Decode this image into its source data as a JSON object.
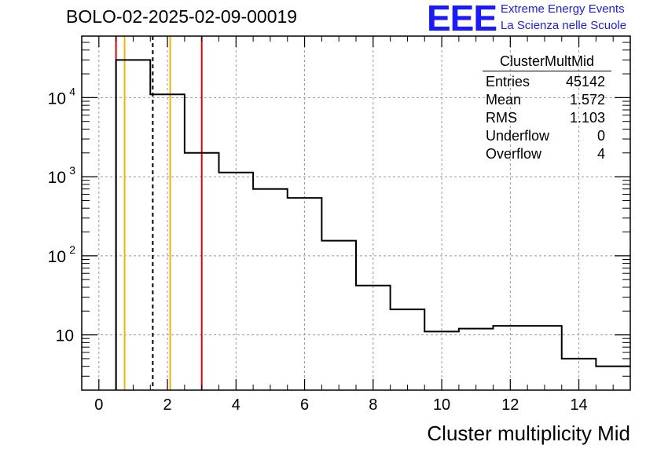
{
  "title": "BOLO-02-2025-02-09-00019",
  "logo": {
    "text": "EEE",
    "line1": "Extreme Energy Events",
    "line2": "La Scienza nelle Scuole",
    "color": "#1a1aff"
  },
  "stats_box": {
    "title": "ClusterMultMid",
    "rows": [
      {
        "label": "Entries",
        "value": "45142"
      },
      {
        "label": "Mean",
        "value": "1.572"
      },
      {
        "label": "RMS",
        "value": "1.103"
      },
      {
        "label": "Underflow",
        "value": "0"
      },
      {
        "label": "Overflow",
        "value": "4"
      }
    ]
  },
  "chart_data": {
    "type": "histogram",
    "xlabel": "Cluster multiplicity Mid",
    "ylabel": "",
    "log_y": true,
    "grid": true,
    "xlim": [
      -0.5,
      15.5
    ],
    "ylim": [
      2,
      60000
    ],
    "x_ticks": [
      "0",
      "2",
      "4",
      "6",
      "8",
      "10",
      "12",
      "14"
    ],
    "y_ticks": [
      {
        "value": 10,
        "label": "10",
        "exp": ""
      },
      {
        "value": 100,
        "label": "10",
        "exp": "2"
      },
      {
        "value": 1000,
        "label": "10",
        "exp": "3"
      },
      {
        "value": 10000,
        "label": "10",
        "exp": "4"
      }
    ],
    "bins": [
      {
        "low": 0.5,
        "high": 1.5,
        "count": 30000
      },
      {
        "low": 1.5,
        "high": 2.5,
        "count": 11000
      },
      {
        "low": 2.5,
        "high": 3.5,
        "count": 2000
      },
      {
        "low": 3.5,
        "high": 4.5,
        "count": 1130
      },
      {
        "low": 4.5,
        "high": 5.5,
        "count": 700
      },
      {
        "low": 5.5,
        "high": 6.5,
        "count": 540
      },
      {
        "low": 6.5,
        "high": 7.5,
        "count": 155
      },
      {
        "low": 7.5,
        "high": 8.5,
        "count": 42
      },
      {
        "low": 8.5,
        "high": 9.5,
        "count": 21
      },
      {
        "low": 9.5,
        "high": 10.5,
        "count": 11
      },
      {
        "low": 10.5,
        "high": 11.5,
        "count": 12
      },
      {
        "low": 11.5,
        "high": 12.5,
        "count": 13
      },
      {
        "low": 12.5,
        "high": 13.5,
        "count": 13
      },
      {
        "low": 13.5,
        "high": 14.5,
        "count": 5
      },
      {
        "low": 14.5,
        "high": 15.5,
        "count": 4
      }
    ],
    "vertical_lines": [
      {
        "x": 0.5,
        "color": "#e00000",
        "style": "solid"
      },
      {
        "x": 0.75,
        "color": "#f0b400",
        "style": "solid"
      },
      {
        "x": 1.572,
        "color": "#000000",
        "style": "dashed"
      },
      {
        "x": 2.08,
        "color": "#f0b400",
        "style": "solid"
      },
      {
        "x": 3.0,
        "color": "#e00000",
        "style": "solid"
      }
    ]
  }
}
